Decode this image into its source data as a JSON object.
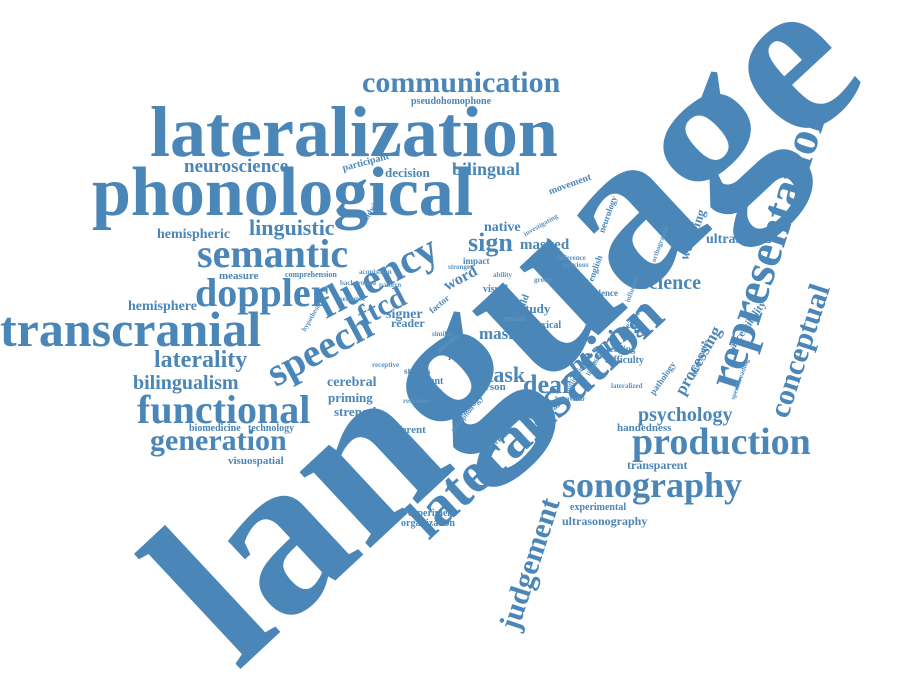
{
  "accent_color": "#4a86b8",
  "background_color": "#ffffff",
  "words": [
    {
      "key": "language",
      "text": "language"
    },
    {
      "key": "lateralization",
      "text": "lateralization"
    },
    {
      "key": "phonological",
      "text": "phonological"
    },
    {
      "key": "lateralisation",
      "text": "lateralisation"
    },
    {
      "key": "representation",
      "text": "representation"
    },
    {
      "key": "transcranial",
      "text": "transcranial"
    },
    {
      "key": "production",
      "text": "production"
    },
    {
      "key": "functional",
      "text": "functional"
    },
    {
      "key": "sonography",
      "text": "sonography"
    },
    {
      "key": "doppler",
      "text": "doppler"
    },
    {
      "key": "semantic",
      "text": "semantic"
    },
    {
      "key": "fluency",
      "text": "fluency"
    },
    {
      "key": "speech",
      "text": "speech"
    },
    {
      "key": "communication",
      "text": "communication"
    },
    {
      "key": "generation",
      "text": "generation"
    },
    {
      "key": "conceptual",
      "text": "conceptual"
    },
    {
      "key": "judgement",
      "text": "judgement"
    },
    {
      "key": "ftcd",
      "text": "ftcd"
    },
    {
      "key": "laterality",
      "text": "laterality"
    },
    {
      "key": "linguistic",
      "text": "linguistic"
    },
    {
      "key": "neuroscience",
      "text": "neuroscience"
    },
    {
      "key": "bilingualism",
      "text": "bilingualism"
    },
    {
      "key": "deaf",
      "text": "deaf"
    },
    {
      "key": "sign",
      "text": "sign"
    },
    {
      "key": "hearing",
      "text": "hearing"
    },
    {
      "key": "psychology",
      "text": "psychology"
    },
    {
      "key": "science",
      "text": "science"
    },
    {
      "key": "processing",
      "text": "processing"
    },
    {
      "key": "bilingual",
      "text": "bilingual"
    },
    {
      "key": "task",
      "text": "task"
    },
    {
      "key": "hemispheric",
      "text": "hemispheric"
    },
    {
      "key": "hemisphere",
      "text": "hemisphere"
    },
    {
      "key": "measure",
      "text": "measure"
    },
    {
      "key": "cerebral",
      "text": "cerebral"
    },
    {
      "key": "priming",
      "text": "priming"
    },
    {
      "key": "strength",
      "text": "strength"
    },
    {
      "key": "ultrasound",
      "text": "ultrasound"
    },
    {
      "key": "masked",
      "text": "masked"
    },
    {
      "key": "native",
      "text": "native"
    },
    {
      "key": "mask",
      "text": "mask"
    },
    {
      "key": "word",
      "text": "word"
    },
    {
      "key": "signer",
      "text": "signer"
    },
    {
      "key": "reader",
      "text": "reader"
    },
    {
      "key": "study",
      "text": "study"
    },
    {
      "key": "decision",
      "text": "decision"
    },
    {
      "key": "participant",
      "text": "participant"
    },
    {
      "key": "pseudohomophone",
      "text": "pseudohomophone"
    },
    {
      "key": "wellbeing",
      "text": "wellbeing"
    },
    {
      "key": "handedness",
      "text": "handedness"
    },
    {
      "key": "transparent",
      "text": "transparent"
    },
    {
      "key": "experimental",
      "text": "experimental"
    },
    {
      "key": "ultrasonography",
      "text": "ultrasonography"
    },
    {
      "key": "experiment",
      "text": "experiment"
    },
    {
      "key": "organization",
      "text": "organization"
    },
    {
      "key": "different",
      "text": "different"
    },
    {
      "key": "visuospatial",
      "text": "visuospatial"
    },
    {
      "key": "biomedicine",
      "text": "biomedicine"
    },
    {
      "key": "technology",
      "text": "technology"
    },
    {
      "key": "accessibility",
      "text": "accessibility"
    },
    {
      "key": "movement",
      "text": "movement"
    },
    {
      "key": "neurology",
      "text": "neurology"
    },
    {
      "key": "studies",
      "text": "studies"
    },
    {
      "key": "implant",
      "text": "implant"
    },
    {
      "key": "imaging",
      "text": "imaging"
    },
    {
      "key": "person",
      "text": "person"
    },
    {
      "key": "brain",
      "text": "brain"
    },
    {
      "key": "rhyme",
      "text": "rhyme"
    },
    {
      "key": "lexical",
      "text": "lexical"
    },
    {
      "key": "child",
      "text": "child"
    },
    {
      "key": "visual",
      "text": "visual"
    },
    {
      "key": "factor",
      "text": "factor"
    },
    {
      "key": "impact",
      "text": "impact"
    },
    {
      "key": "english",
      "text": "english"
    },
    {
      "key": "evidence",
      "text": "evidence"
    },
    {
      "key": "reading",
      "text": "reading"
    },
    {
      "key": "difficulty",
      "text": "difficulty"
    },
    {
      "key": "cochlear",
      "text": "cochlear"
    },
    {
      "key": "audiology",
      "text": "audiology"
    },
    {
      "key": "individual",
      "text": "individual"
    },
    {
      "key": "comprehension",
      "text": "comprehension"
    },
    {
      "key": "sandwich",
      "text": "sandwich"
    },
    {
      "key": "deafness",
      "text": "deafness"
    },
    {
      "key": "pathology",
      "text": "pathology"
    },
    {
      "key": "informatics",
      "text": "informatics"
    },
    {
      "key": "investigating",
      "text": "investigating"
    },
    {
      "key": "difference",
      "text": "difference"
    },
    {
      "key": "stronger",
      "text": "stronger"
    },
    {
      "key": "ability",
      "text": "ability"
    },
    {
      "key": "previous",
      "text": "previous"
    },
    {
      "key": "neural",
      "text": "neural"
    },
    {
      "key": "similar",
      "text": "similar"
    },
    {
      "key": "modality",
      "text": "modality"
    },
    {
      "key": "response",
      "text": "response"
    },
    {
      "key": "pattern",
      "text": "pattern"
    },
    {
      "key": "sentence",
      "text": "sentence"
    },
    {
      "key": "acquisition",
      "text": "acquisition"
    },
    {
      "key": "background",
      "text": "background"
    },
    {
      "key": "hypothesis",
      "text": "hypothesis"
    },
    {
      "key": "influence",
      "text": "influence"
    },
    {
      "key": "listening",
      "text": "listening"
    },
    {
      "key": "difficulties",
      "text": "difficulties"
    },
    {
      "key": "behaviour",
      "text": "behaviour"
    },
    {
      "key": "lateralized",
      "text": "lateralized"
    },
    {
      "key": "speechreading",
      "text": "speechreading"
    },
    {
      "key": "orthographic",
      "text": "orthographic"
    },
    {
      "key": "group",
      "text": "group"
    },
    {
      "key": "receptive",
      "text": "receptive"
    },
    {
      "key": "perception",
      "text": "perception"
    }
  ]
}
